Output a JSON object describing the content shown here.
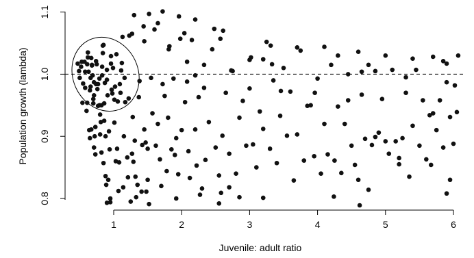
{
  "chart_data": {
    "type": "scatter",
    "title": "",
    "xlabel": "Juvenile: adult ratio",
    "ylabel": "Population growth (lambda)",
    "xlim": [
      0.4,
      6.1
    ],
    "ylim": [
      0.79,
      1.1
    ],
    "x_ticks": [
      1,
      2,
      3,
      4,
      5,
      6
    ],
    "x_tick_labels": [
      "1",
      "2",
      "3",
      "4",
      "5",
      "6"
    ],
    "y_ticks": [
      0.8,
      0.9,
      1.0,
      1.1
    ],
    "y_tick_labels": [
      "0.8",
      "0.9",
      "1.0",
      "1.1"
    ],
    "grid": false,
    "reference_line": {
      "y": 1.0,
      "style": "dashed"
    },
    "ellipse": {
      "center_x": 0.88,
      "center_y": 1.0,
      "radius_x": 0.48,
      "radius_y": 0.061,
      "rotation_deg": -25
    },
    "marker_color": "#111111",
    "series": [
      {
        "points": [
          [
            0.47,
            1.017
          ],
          [
            0.49,
            1.005
          ],
          [
            0.5,
            0.994
          ],
          [
            0.52,
            1.012
          ],
          [
            0.53,
            1.02
          ],
          [
            0.54,
            0.954
          ],
          [
            0.55,
            0.985
          ],
          [
            0.57,
            1.02
          ],
          [
            0.58,
            0.978
          ],
          [
            0.58,
            1.004
          ],
          [
            0.6,
            0.941
          ],
          [
            0.61,
            0.954
          ],
          [
            0.61,
            1.016
          ],
          [
            0.62,
            1.027
          ],
          [
            0.62,
            1.035
          ],
          [
            0.63,
            1.004
          ],
          [
            0.64,
            0.91
          ],
          [
            0.65,
            0.974
          ],
          [
            0.65,
            0.897
          ],
          [
            0.66,
            0.98
          ],
          [
            0.66,
            0.994
          ],
          [
            0.67,
            0.911
          ],
          [
            0.67,
            1.026
          ],
          [
            0.68,
            1.014
          ],
          [
            0.68,
            1.015
          ],
          [
            0.69,
            0.998
          ],
          [
            0.7,
            0.953
          ],
          [
            0.7,
            0.96
          ],
          [
            0.71,
            0.987
          ],
          [
            0.71,
            0.966
          ],
          [
            0.71,
            0.882
          ],
          [
            0.72,
            0.9
          ],
          [
            0.73,
            0.915
          ],
          [
            0.73,
            0.871
          ],
          [
            0.74,
            0.984
          ],
          [
            0.74,
            1.021
          ],
          [
            0.75,
            1.016
          ],
          [
            0.76,
            0.976
          ],
          [
            0.77,
            0.984
          ],
          [
            0.77,
            0.949
          ],
          [
            0.79,
            0.95
          ],
          [
            0.79,
            0.993
          ],
          [
            0.8,
            0.903
          ],
          [
            0.8,
            0.935
          ],
          [
            0.81,
            0.923
          ],
          [
            0.82,
            0.874
          ],
          [
            0.82,
            0.95
          ],
          [
            0.83,
            1.012
          ],
          [
            0.83,
            0.998
          ],
          [
            0.84,
            1.034
          ],
          [
            0.84,
            1.046
          ],
          [
            0.85,
            0.857
          ],
          [
            0.85,
            1.047
          ],
          [
            0.86,
            0.953
          ],
          [
            0.86,
            0.925
          ],
          [
            0.87,
            0.986
          ],
          [
            0.88,
            0.9
          ],
          [
            0.88,
            0.836
          ],
          [
            0.89,
            0.822
          ],
          [
            0.9,
            1.007
          ],
          [
            0.9,
            0.991
          ],
          [
            0.91,
            0.966
          ],
          [
            0.92,
            0.83
          ],
          [
            0.93,
            0.908
          ],
          [
            0.94,
            0.879
          ],
          [
            0.95,
            0.794
          ],
          [
            0.96,
            1.017
          ],
          [
            0.96,
            1.029
          ],
          [
            0.97,
            0.975
          ],
          [
            0.98,
            0.969
          ],
          [
            0.99,
            1.01
          ],
          [
            1.01,
            0.959
          ],
          [
            1.01,
            0.922
          ],
          [
            1.02,
            0.98
          ],
          [
            1.03,
            0.86
          ],
          [
            1.04,
            1.032
          ],
          [
            1.05,
            0.88
          ],
          [
            1.06,
            0.956
          ],
          [
            1.07,
            0.812
          ],
          [
            1.08,
            0.858
          ],
          [
            1.09,
            0.984
          ],
          [
            1.1,
            0.97
          ],
          [
            1.11,
            1.006
          ],
          [
            1.12,
            1.018
          ],
          [
            1.13,
            1.06
          ],
          [
            1.14,
            0.818
          ],
          [
            1.15,
            0.9
          ],
          [
            1.16,
            0.994
          ],
          [
            1.17,
            0.955
          ],
          [
            1.2,
            0.866
          ],
          [
            1.21,
            0.834
          ],
          [
            1.22,
            0.961
          ],
          [
            1.23,
            1.062
          ],
          [
            1.25,
            0.795
          ],
          [
            1.27,
            0.872
          ],
          [
            1.28,
            0.931
          ],
          [
            1.29,
            0.859
          ],
          [
            1.31,
            0.893
          ],
          [
            1.32,
            0.835
          ],
          [
            1.33,
            0.802
          ],
          [
            1.35,
            0.822
          ],
          [
            1.37,
            0.963
          ],
          [
            1.38,
            0.989
          ],
          [
            1.41,
            0.811
          ],
          [
            1.42,
            0.886
          ],
          [
            1.45,
            0.911
          ],
          [
            1.47,
            0.89
          ],
          [
            1.48,
            0.811
          ],
          [
            1.5,
            0.88
          ],
          [
            1.52,
            0.791
          ],
          [
            1.55,
            0.994
          ],
          [
            1.57,
            0.937
          ],
          [
            1.6,
            1.072
          ],
          [
            1.62,
            0.885
          ],
          [
            1.65,
            0.92
          ],
          [
            1.68,
            0.863
          ],
          [
            1.7,
            0.82
          ],
          [
            1.72,
            0.984
          ],
          [
            1.75,
            0.965
          ],
          [
            1.78,
            0.844
          ],
          [
            1.8,
            0.93
          ],
          [
            1.82,
            1.045
          ],
          [
            1.85,
            0.879
          ],
          [
            1.88,
            0.993
          ],
          [
            1.9,
            0.87
          ],
          [
            1.92,
            0.897
          ],
          [
            1.95,
            0.839
          ],
          [
            1.98,
            1.057
          ],
          [
            2.0,
            0.91
          ],
          [
            2.05,
            0.955
          ],
          [
            2.08,
            0.988
          ],
          [
            2.1,
            0.876
          ],
          [
            2.12,
            0.833
          ],
          [
            2.15,
            1.055
          ],
          [
            2.2,
            0.911
          ],
          [
            2.22,
            0.853
          ],
          [
            2.25,
            0.963
          ],
          [
            2.3,
            0.816
          ],
          [
            2.33,
            0.978
          ],
          [
            2.35,
            0.862
          ],
          [
            2.4,
            0.923
          ],
          [
            2.45,
            1.04
          ],
          [
            2.5,
            0.882
          ],
          [
            2.55,
            0.837
          ],
          [
            2.6,
            0.901
          ],
          [
            2.65,
            0.97
          ],
          [
            2.7,
            0.872
          ],
          [
            2.75,
            1.005
          ],
          [
            2.8,
            0.84
          ],
          [
            2.85,
            0.93
          ],
          [
            2.9,
            0.957
          ],
          [
            2.95,
            0.885
          ],
          [
            3.0,
            1.023
          ],
          [
            3.05,
            0.887
          ],
          [
            3.1,
            0.85
          ],
          [
            3.15,
            0.94
          ],
          [
            3.2,
            0.912
          ],
          [
            3.25,
            1.052
          ],
          [
            3.3,
            0.88
          ],
          [
            3.35,
            0.99
          ],
          [
            3.4,
            0.857
          ],
          [
            3.45,
            0.933
          ],
          [
            3.5,
            1.01
          ],
          [
            3.55,
            0.901
          ],
          [
            3.6,
            0.972
          ],
          [
            3.65,
            0.829
          ],
          [
            3.7,
            0.903
          ],
          [
            3.75,
            1.038
          ],
          [
            3.8,
            0.861
          ],
          [
            3.85,
            0.949
          ],
          [
            3.9,
            0.95
          ],
          [
            3.95,
            0.868
          ],
          [
            4.0,
            0.993
          ],
          [
            4.05,
            0.84
          ],
          [
            4.1,
            0.92
          ],
          [
            4.15,
            0.871
          ],
          [
            4.2,
            1.015
          ],
          [
            4.25,
            0.861
          ],
          [
            4.3,
            0.948
          ],
          [
            4.35,
            0.841
          ],
          [
            4.4,
            0.92
          ],
          [
            4.45,
            1.0
          ],
          [
            4.5,
            0.885
          ],
          [
            4.55,
            0.854
          ],
          [
            4.6,
            0.83
          ],
          [
            4.65,
            0.967
          ],
          [
            4.7,
            0.896
          ],
          [
            4.75,
            1.015
          ],
          [
            4.8,
            0.886
          ],
          [
            4.85,
            0.899
          ],
          [
            4.9,
            0.906
          ],
          [
            4.95,
            0.96
          ],
          [
            5.0,
            0.892
          ],
          [
            5.05,
            0.872
          ],
          [
            5.1,
            1.007
          ],
          [
            5.15,
            0.892
          ],
          [
            5.2,
            0.865
          ],
          [
            5.25,
            0.897
          ],
          [
            5.3,
            0.97
          ],
          [
            5.35,
            0.835
          ],
          [
            5.4,
            0.917
          ],
          [
            5.45,
            1.007
          ],
          [
            5.5,
            0.885
          ],
          [
            5.55,
            0.958
          ],
          [
            5.6,
            0.863
          ],
          [
            5.65,
            0.934
          ],
          [
            5.7,
            1.028
          ],
          [
            5.75,
            0.91
          ],
          [
            5.8,
            0.958
          ],
          [
            5.85,
            0.882
          ],
          [
            5.9,
            1.017
          ],
          [
            5.95,
            0.931
          ],
          [
            6.0,
            0.888
          ],
          [
            6.05,
            0.939
          ],
          [
            1.3,
            1.095
          ],
          [
            1.52,
            1.097
          ],
          [
            1.72,
            1.101
          ],
          [
            1.96,
            1.093
          ],
          [
            2.2,
            1.088
          ],
          [
            1.44,
            1.077
          ],
          [
            1.65,
            1.082
          ],
          [
            2.04,
            1.066
          ],
          [
            2.48,
            1.073
          ],
          [
            2.61,
            1.07
          ],
          [
            1.81,
            1.04
          ],
          [
            1.27,
            1.065
          ],
          [
            1.45,
            1.053
          ],
          [
            2.57,
            1.057
          ],
          [
            3.31,
            1.046
          ],
          [
            3.7,
            1.043
          ],
          [
            4.1,
            1.044
          ],
          [
            4.6,
            1.036
          ],
          [
            5.0,
            1.03
          ],
          [
            5.4,
            1.025
          ],
          [
            5.85,
            1.021
          ],
          [
            4.3,
            1.03
          ],
          [
            3.02,
            1.027
          ],
          [
            3.2,
            1.024
          ],
          [
            2.08,
            1.02
          ],
          [
            2.33,
            1.015
          ],
          [
            3.33,
            1.016
          ],
          [
            4.65,
            1.004
          ],
          [
            5.9,
            0.987
          ],
          [
            3.0,
            0.977
          ],
          [
            4.85,
            1.005
          ],
          [
            2.2,
            0.998
          ],
          [
            2.73,
            1.006
          ],
          [
            3.46,
            0.973
          ],
          [
            3.96,
            0.97
          ],
          [
            4.45,
            0.958
          ],
          [
            5.3,
            0.995
          ],
          [
            6.02,
            0.982
          ],
          [
            5.7,
            0.937
          ],
          [
            5.95,
            0.83
          ],
          [
            5.9,
            0.808
          ],
          [
            5.2,
            0.855
          ],
          [
            5.67,
            0.854
          ],
          [
            4.75,
            0.814
          ],
          [
            4.62,
            0.789
          ],
          [
            4.24,
            0.803
          ],
          [
            4.0,
            0.787
          ],
          [
            3.6,
            0.788
          ],
          [
            3.2,
            0.801
          ],
          [
            2.85,
            0.802
          ],
          [
            2.55,
            0.792
          ],
          [
            2.7,
            0.818
          ],
          [
            2.27,
            0.806
          ],
          [
            1.92,
            0.8
          ],
          [
            0.95,
            0.8
          ],
          [
            0.9,
            0.793
          ],
          [
            1.5,
            0.83
          ],
          [
            2.58,
            0.809
          ],
          [
            6.07,
            1.03
          ]
        ]
      }
    ]
  }
}
